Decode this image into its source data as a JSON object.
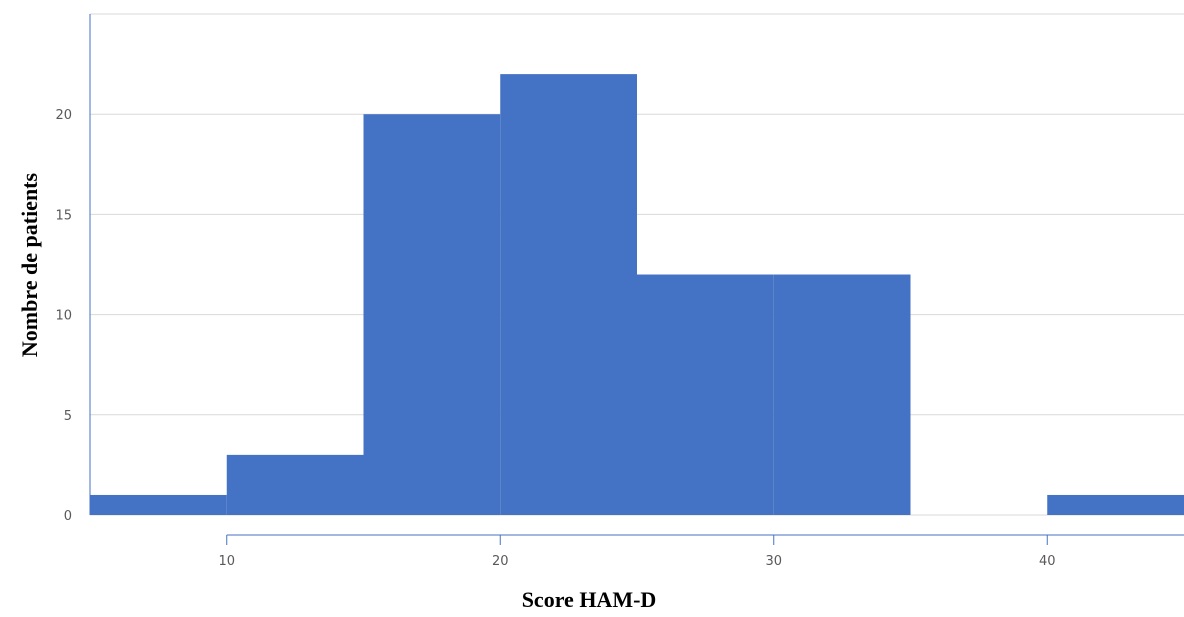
{
  "chart_data": {
    "type": "bar",
    "subtype": "histogram",
    "xlabel": "Score HAM-D",
    "ylabel": "Nombre de patients",
    "bins": [
      {
        "start": 5,
        "end": 10,
        "value": 1
      },
      {
        "start": 10,
        "end": 15,
        "value": 3
      },
      {
        "start": 15,
        "end": 20,
        "value": 20
      },
      {
        "start": 20,
        "end": 25,
        "value": 22
      },
      {
        "start": 25,
        "end": 30,
        "value": 12
      },
      {
        "start": 30,
        "end": 35,
        "value": 12
      },
      {
        "start": 35,
        "end": 40,
        "value": 0
      },
      {
        "start": 40,
        "end": 45,
        "value": 1
      }
    ],
    "xlim": [
      5,
      45
    ],
    "ylim": [
      0,
      25
    ],
    "xticks": [
      10,
      20,
      30,
      40
    ],
    "yticks": [
      0,
      5,
      10,
      15,
      20
    ],
    "grid": true,
    "legend": "none",
    "colors": {
      "bar": "#4472C4",
      "axis": "#4472C4",
      "grid": "#D9D9D9",
      "tick_text": "#595959"
    }
  }
}
